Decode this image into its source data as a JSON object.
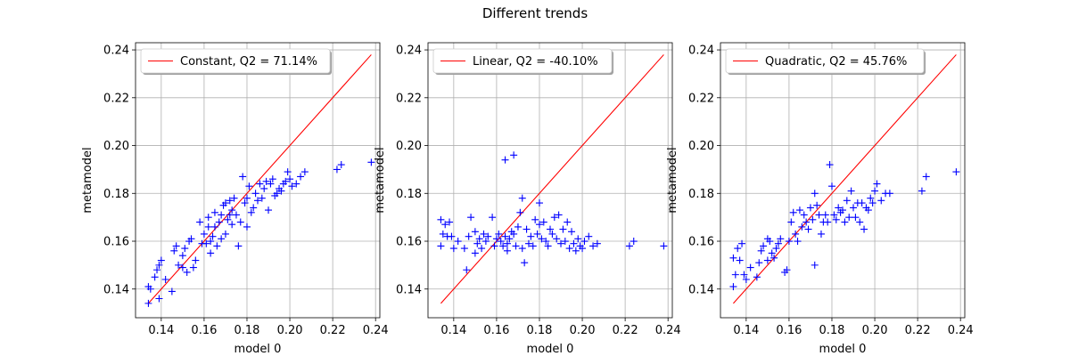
{
  "figure": {
    "title": "Different trends"
  },
  "chart_data": [
    {
      "type": "scatter",
      "legend_label": "Constant, Q2 = 71.14%",
      "legend_position": "top-left",
      "xlabel": "model 0",
      "ylabel": "metamodel",
      "xlim": [
        0.128,
        0.242
      ],
      "ylim": [
        0.128,
        0.243
      ],
      "xticks": [
        0.14,
        0.16,
        0.18,
        0.2,
        0.22,
        0.24
      ],
      "yticks": [
        0.14,
        0.16,
        0.18,
        0.2,
        0.22,
        0.24
      ],
      "grid": true,
      "line": {
        "x": [
          0.134,
          0.238
        ],
        "y": [
          0.134,
          0.238
        ],
        "color": "#ff0000"
      },
      "marker_color": "#0000ff",
      "points": {
        "x": [
          0.134,
          0.134,
          0.135,
          0.137,
          0.138,
          0.139,
          0.139,
          0.14,
          0.142,
          0.145,
          0.146,
          0.147,
          0.148,
          0.15,
          0.15,
          0.151,
          0.152,
          0.153,
          0.154,
          0.155,
          0.156,
          0.158,
          0.159,
          0.16,
          0.161,
          0.162,
          0.162,
          0.163,
          0.163,
          0.164,
          0.165,
          0.165,
          0.166,
          0.167,
          0.168,
          0.168,
          0.169,
          0.17,
          0.17,
          0.171,
          0.172,
          0.172,
          0.173,
          0.173,
          0.174,
          0.175,
          0.176,
          0.177,
          0.178,
          0.179,
          0.18,
          0.18,
          0.181,
          0.182,
          0.183,
          0.184,
          0.185,
          0.186,
          0.187,
          0.188,
          0.189,
          0.19,
          0.191,
          0.192,
          0.193,
          0.194,
          0.195,
          0.196,
          0.197,
          0.198,
          0.199,
          0.2,
          0.201,
          0.203,
          0.205,
          0.207,
          0.222,
          0.224,
          0.238
        ],
        "y": [
          0.134,
          0.141,
          0.14,
          0.145,
          0.148,
          0.136,
          0.15,
          0.152,
          0.144,
          0.139,
          0.156,
          0.158,
          0.15,
          0.149,
          0.154,
          0.157,
          0.147,
          0.16,
          0.161,
          0.149,
          0.152,
          0.168,
          0.159,
          0.163,
          0.159,
          0.17,
          0.166,
          0.155,
          0.16,
          0.162,
          0.166,
          0.172,
          0.158,
          0.168,
          0.171,
          0.161,
          0.175,
          0.176,
          0.163,
          0.169,
          0.171,
          0.177,
          0.167,
          0.173,
          0.178,
          0.171,
          0.158,
          0.168,
          0.187,
          0.176,
          0.166,
          0.178,
          0.183,
          0.172,
          0.174,
          0.18,
          0.177,
          0.184,
          0.178,
          0.182,
          0.185,
          0.173,
          0.184,
          0.186,
          0.179,
          0.18,
          0.182,
          0.181,
          0.184,
          0.185,
          0.189,
          0.186,
          0.183,
          0.184,
          0.187,
          0.189,
          0.19,
          0.192,
          0.193
        ]
      }
    },
    {
      "type": "scatter",
      "legend_label": "Linear, Q2 = -40.10%",
      "legend_position": "top-left",
      "xlabel": "model 0",
      "ylabel": "metamodel",
      "xlim": [
        0.128,
        0.242
      ],
      "ylim": [
        0.128,
        0.243
      ],
      "xticks": [
        0.14,
        0.16,
        0.18,
        0.2,
        0.22,
        0.24
      ],
      "yticks": [
        0.14,
        0.16,
        0.18,
        0.2,
        0.22,
        0.24
      ],
      "grid": true,
      "line": {
        "x": [
          0.134,
          0.238
        ],
        "y": [
          0.134,
          0.238
        ],
        "color": "#ff0000"
      },
      "marker_color": "#0000ff",
      "points": {
        "x": [
          0.134,
          0.134,
          0.135,
          0.136,
          0.137,
          0.138,
          0.139,
          0.14,
          0.142,
          0.145,
          0.146,
          0.147,
          0.148,
          0.15,
          0.15,
          0.151,
          0.152,
          0.153,
          0.154,
          0.155,
          0.156,
          0.158,
          0.159,
          0.16,
          0.161,
          0.162,
          0.163,
          0.164,
          0.165,
          0.165,
          0.166,
          0.167,
          0.168,
          0.169,
          0.17,
          0.171,
          0.172,
          0.172,
          0.173,
          0.174,
          0.175,
          0.176,
          0.177,
          0.178,
          0.179,
          0.18,
          0.18,
          0.181,
          0.182,
          0.183,
          0.184,
          0.185,
          0.186,
          0.187,
          0.188,
          0.189,
          0.19,
          0.191,
          0.192,
          0.193,
          0.194,
          0.195,
          0.196,
          0.197,
          0.198,
          0.199,
          0.2,
          0.201,
          0.203,
          0.205,
          0.207,
          0.222,
          0.224,
          0.238,
          0.164,
          0.168
        ],
        "y": [
          0.169,
          0.158,
          0.163,
          0.167,
          0.162,
          0.168,
          0.162,
          0.157,
          0.16,
          0.157,
          0.148,
          0.162,
          0.17,
          0.155,
          0.164,
          0.159,
          0.161,
          0.157,
          0.163,
          0.16,
          0.162,
          0.17,
          0.158,
          0.161,
          0.163,
          0.16,
          0.158,
          0.162,
          0.159,
          0.156,
          0.161,
          0.164,
          0.163,
          0.158,
          0.166,
          0.172,
          0.178,
          0.157,
          0.151,
          0.165,
          0.159,
          0.162,
          0.158,
          0.169,
          0.163,
          0.167,
          0.176,
          0.161,
          0.168,
          0.16,
          0.158,
          0.165,
          0.163,
          0.17,
          0.161,
          0.171,
          0.159,
          0.165,
          0.16,
          0.168,
          0.157,
          0.164,
          0.159,
          0.156,
          0.161,
          0.158,
          0.157,
          0.16,
          0.162,
          0.158,
          0.159,
          0.158,
          0.16,
          0.158,
          0.194,
          0.196
        ]
      }
    },
    {
      "type": "scatter",
      "legend_label": "Quadratic, Q2 = 45.76%",
      "legend_position": "top-left",
      "xlabel": "model 0",
      "ylabel": "metamodel",
      "xlim": [
        0.128,
        0.242
      ],
      "ylim": [
        0.128,
        0.243
      ],
      "xticks": [
        0.14,
        0.16,
        0.18,
        0.2,
        0.22,
        0.24
      ],
      "yticks": [
        0.14,
        0.16,
        0.18,
        0.2,
        0.22,
        0.24
      ],
      "grid": true,
      "line": {
        "x": [
          0.134,
          0.238
        ],
        "y": [
          0.134,
          0.238
        ],
        "color": "#ff0000"
      },
      "marker_color": "#0000ff",
      "points": {
        "x": [
          0.134,
          0.134,
          0.135,
          0.136,
          0.137,
          0.138,
          0.139,
          0.14,
          0.142,
          0.145,
          0.146,
          0.147,
          0.148,
          0.15,
          0.15,
          0.151,
          0.152,
          0.153,
          0.154,
          0.155,
          0.156,
          0.158,
          0.159,
          0.16,
          0.161,
          0.162,
          0.163,
          0.164,
          0.165,
          0.166,
          0.167,
          0.168,
          0.169,
          0.17,
          0.171,
          0.172,
          0.172,
          0.173,
          0.174,
          0.175,
          0.176,
          0.177,
          0.178,
          0.179,
          0.18,
          0.181,
          0.182,
          0.183,
          0.184,
          0.185,
          0.186,
          0.187,
          0.188,
          0.189,
          0.19,
          0.191,
          0.192,
          0.193,
          0.194,
          0.195,
          0.196,
          0.197,
          0.198,
          0.199,
          0.2,
          0.201,
          0.203,
          0.205,
          0.207,
          0.222,
          0.224,
          0.238
        ],
        "y": [
          0.141,
          0.153,
          0.146,
          0.157,
          0.152,
          0.159,
          0.146,
          0.144,
          0.149,
          0.145,
          0.151,
          0.156,
          0.158,
          0.152,
          0.161,
          0.16,
          0.155,
          0.153,
          0.157,
          0.159,
          0.161,
          0.147,
          0.148,
          0.16,
          0.168,
          0.172,
          0.163,
          0.16,
          0.173,
          0.166,
          0.171,
          0.168,
          0.165,
          0.174,
          0.169,
          0.18,
          0.15,
          0.175,
          0.171,
          0.163,
          0.168,
          0.171,
          0.168,
          0.192,
          0.183,
          0.171,
          0.169,
          0.174,
          0.172,
          0.173,
          0.168,
          0.177,
          0.17,
          0.181,
          0.174,
          0.17,
          0.176,
          0.168,
          0.176,
          0.165,
          0.174,
          0.173,
          0.178,
          0.176,
          0.181,
          0.184,
          0.177,
          0.18,
          0.18,
          0.181,
          0.187,
          0.189
        ]
      }
    }
  ]
}
